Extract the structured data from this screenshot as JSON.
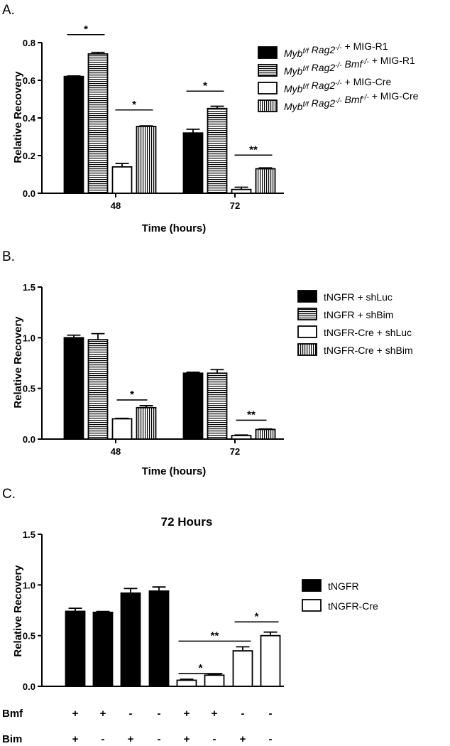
{
  "chart_data": [
    {
      "panel": "A.",
      "type": "bar",
      "title": "",
      "xlabel": "Time (hours)",
      "ylabel": "Relative Recovery",
      "ylim": [
        0,
        0.8
      ],
      "yticks": [
        "0.0",
        "0.2",
        "0.4",
        "0.6",
        "0.8"
      ],
      "categories": [
        "48",
        "72"
      ],
      "series": [
        {
          "name": "Myb<sup>f/f</sup> Rag2<sup>-/-</sup> + MIG-R1",
          "fill": "black",
          "values": [
            0.62,
            0.32
          ],
          "errors": [
            0.003,
            0.02
          ]
        },
        {
          "name": "Myb<sup>f/f</sup> Rag2<sup>-/-</sup> Bmf<sup>-/-</sup> + MIG-R1",
          "fill": "hstripe",
          "values": [
            0.74,
            0.45
          ],
          "errors": [
            0.008,
            0.012
          ]
        },
        {
          "name": "Myb<sup>f/f</sup> Rag2<sup>-/-</sup> + MIG-Cre",
          "fill": "white",
          "values": [
            0.14,
            0.02
          ],
          "errors": [
            0.018,
            0.012
          ]
        },
        {
          "name": "Myb<sup>f/f</sup> Rag2<sup>-/-</sup> Bmf<sup>-/-</sup> + MIG-Cre",
          "fill": "vstripe",
          "values": [
            0.355,
            0.13
          ],
          "errors": [
            0.003,
            0.005
          ]
        }
      ],
      "significance": [
        {
          "label": "*",
          "category": 0,
          "from": 0,
          "to": 1,
          "y": 0.85
        },
        {
          "label": "*",
          "category": 0,
          "from": 2,
          "to": 3,
          "y": 0.45
        },
        {
          "label": "*",
          "category": 1,
          "from": 0,
          "to": 1,
          "y": 0.55
        },
        {
          "label": "**",
          "category": 1,
          "from": 2,
          "to": 3,
          "y": 0.21
        }
      ]
    },
    {
      "panel": "B.",
      "type": "bar",
      "title": "",
      "xlabel": "Time (hours)",
      "ylabel": "Relative Recovery",
      "ylim": [
        0,
        1.5
      ],
      "yticks": [
        "0.0",
        "0.5",
        "1.0",
        "1.5"
      ],
      "categories": [
        "48",
        "72"
      ],
      "series": [
        {
          "name": "tNGFR + shLuc",
          "fill": "black",
          "values": [
            1.0,
            0.65
          ],
          "errors": [
            0.025,
            0.01
          ]
        },
        {
          "name": "tNGFR + shBim",
          "fill": "hstripe",
          "values": [
            0.98,
            0.65
          ],
          "errors": [
            0.06,
            0.035
          ]
        },
        {
          "name": "tNGFR-Cre + shLuc",
          "fill": "white",
          "values": [
            0.2,
            0.035
          ],
          "errors": [
            0.005,
            0.005
          ]
        },
        {
          "name": "tNGFR-Cre + shBim",
          "fill": "vstripe",
          "values": [
            0.31,
            0.095
          ],
          "errors": [
            0.02,
            0.005
          ]
        }
      ],
      "significance": [
        {
          "label": "*",
          "category": 0,
          "from": 2,
          "to": 3,
          "y": 0.4
        },
        {
          "label": "**",
          "category": 1,
          "from": 2,
          "to": 3,
          "y": 0.2
        }
      ]
    },
    {
      "panel": "C.",
      "type": "bar",
      "title": "72 Hours",
      "xlabel": "",
      "ylabel": "Relative Recovery",
      "ylim": [
        0,
        1.5
      ],
      "yticks": [
        "0.0",
        "0.5",
        "1.0",
        "1.5"
      ],
      "categories": [
        "1",
        "2",
        "3",
        "4",
        "5",
        "6",
        "7",
        "8"
      ],
      "values": [
        0.74,
        0.73,
        0.92,
        0.94,
        0.06,
        0.11,
        0.35,
        0.5
      ],
      "errors": [
        0.03,
        0.008,
        0.045,
        0.04,
        0.01,
        0.008,
        0.04,
        0.035
      ],
      "fills": [
        "black",
        "black",
        "black",
        "black",
        "white",
        "white",
        "white",
        "white"
      ],
      "legend": [
        {
          "name": "tNGFR",
          "fill": "black"
        },
        {
          "name": "tNGFR-Cre",
          "fill": "white"
        }
      ],
      "row_labels": [
        "Bmf",
        "Bim"
      ],
      "bmf": [
        "+",
        "+",
        "-",
        "-",
        "+",
        "+",
        "-",
        "-"
      ],
      "bim": [
        "+",
        "-",
        "+",
        "-",
        "+",
        "-",
        "+",
        "-"
      ],
      "significance": [
        {
          "label": "*",
          "from": 4,
          "to": 5,
          "y": 0.14
        },
        {
          "label": "**",
          "from": 4,
          "to": 6,
          "y": 0.46
        },
        {
          "label": "*",
          "from": 6,
          "to": 7,
          "y": 0.65
        }
      ]
    }
  ]
}
